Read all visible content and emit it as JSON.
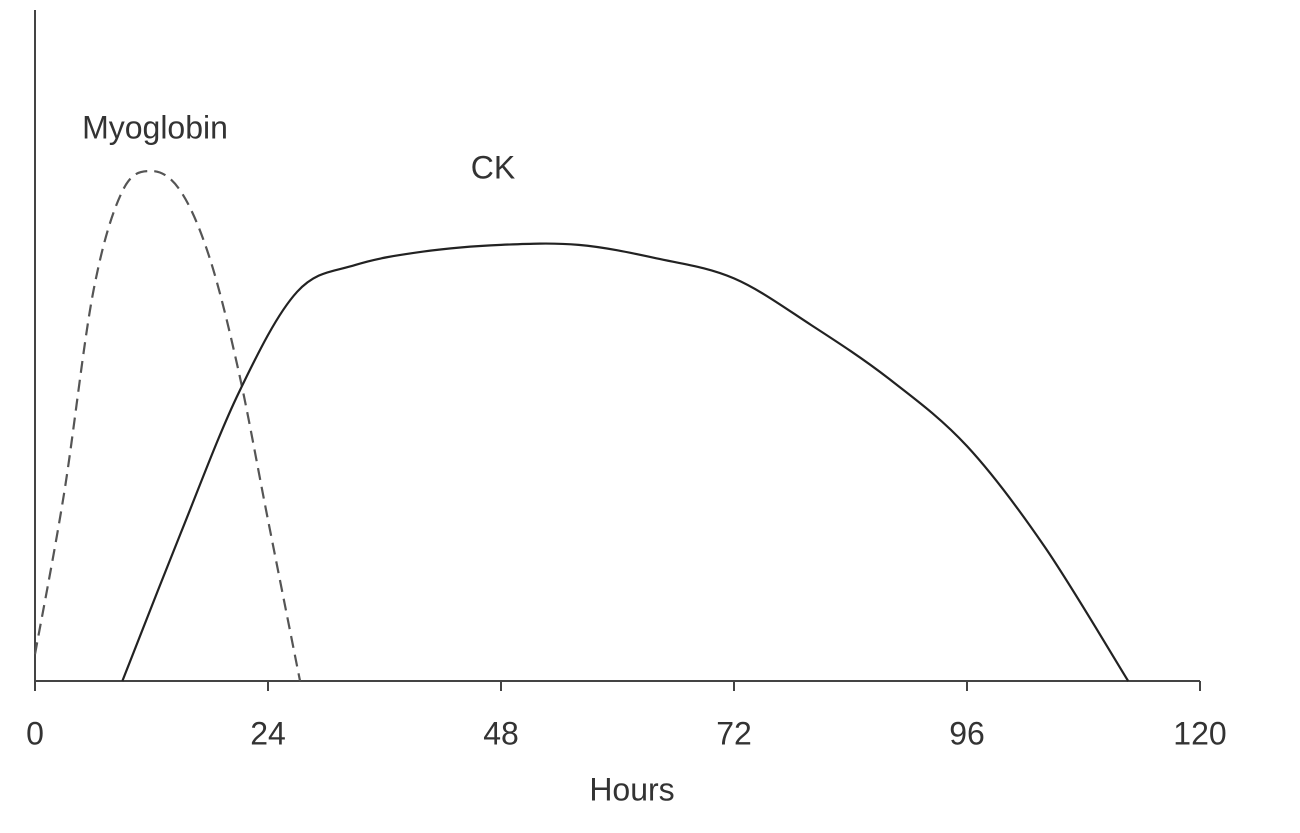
{
  "chart_data": {
    "type": "line",
    "x_label": "Hours",
    "xlim": [
      0,
      120
    ],
    "xticks": [
      0,
      24,
      48,
      72,
      96,
      120
    ],
    "ylim": [
      0,
      100
    ],
    "series": [
      {
        "name": "Myoglobin",
        "color": "#555555",
        "dashed": true,
        "x": [
          0,
          3,
          6,
          9,
          12,
          15,
          18,
          21,
          24,
          27.3
        ],
        "values": [
          4,
          28,
          58,
          73,
          76,
          73,
          63,
          46,
          24,
          0
        ]
      },
      {
        "name": "CK",
        "color": "#222222",
        "dashed": false,
        "x": [
          9,
          15,
          21,
          27,
          33,
          40,
          48,
          56,
          64,
          72,
          80,
          88,
          96,
          104,
          112.6
        ],
        "values": [
          0,
          22,
          43,
          58,
          62,
          64,
          65,
          65,
          63,
          60,
          53,
          45,
          35,
          20,
          0
        ]
      }
    ]
  }
}
